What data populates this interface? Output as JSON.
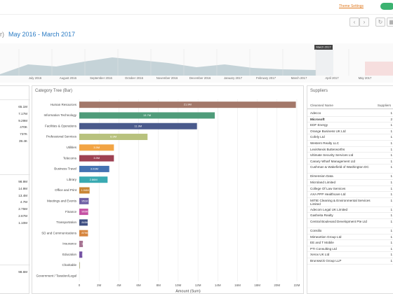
{
  "header": {
    "theme_settings": "Theme Settings"
  },
  "title": {
    "prefix": "r)",
    "range": "May 2016 - March 2017"
  },
  "timeline": {
    "months": [
      "July 2016",
      "August 2016",
      "September 2016",
      "October 2016",
      "November 2016",
      "December 2016",
      "January 2017",
      "February 2017",
      "March 2017",
      "April 2017",
      "May 2017"
    ],
    "selected": "March 2017"
  },
  "left_panel": {
    "groups": [
      [
        "65.1M",
        "7.17M",
        "9.29M",
        "470K",
        "737K",
        "39.4K"
      ],
      [
        "98.9M",
        "14.9M",
        "13.4M",
        "4.7M",
        "2.75M",
        "2.67M",
        "1.10M"
      ],
      [
        "98.6M"
      ]
    ]
  },
  "category_tree": {
    "type": "bar",
    "title": "Category Tree (Bar)",
    "categories": [
      "Human Resources",
      "Information Technology",
      "Facilities & Operations",
      "Professional Services",
      "Utilities",
      "Telecoms",
      "Business Travel",
      "Library",
      "Office and Print",
      "Meetings and Events",
      "Finance",
      "Transportation",
      "SD and Communications",
      "Insurance",
      "Education",
      "Charitable",
      "Government / Taxation/Legal"
    ],
    "values": [
      21900000,
      13700000,
      11900000,
      6900000,
      3500000,
      3500000,
      3030000,
      2860000,
      1040000,
      951000,
      900000,
      845000,
      879000,
      364000,
      304000,
      48300,
      1700
    ],
    "value_labels": [
      "21.9M",
      "13.7M",
      "11.9M",
      "6.9M",
      "3.5M",
      "3.5M",
      "3.03M",
      "2.86M",
      "1.04M",
      "951K",
      "900K",
      "845K",
      "879K",
      "364K",
      "304K",
      "48.3K",
      "1.70K"
    ],
    "colors": [
      "#a3786a",
      "#4f9c7a",
      "#4a5a8c",
      "#b8c27e",
      "#f2a444",
      "#9e4152",
      "#4472b2",
      "#3aaab2",
      "#c98534",
      "#6e5fa4",
      "#c552a4",
      "#3f4f82",
      "#d6853e",
      "#a67392",
      "#7553a4",
      "#9b9b63",
      "#93b372"
    ],
    "xlim": [
      0,
      22000000
    ],
    "xticks": [
      0,
      {
        "value": 2000000,
        "label": "2M"
      },
      {
        "value": 4000000,
        "label": "4M"
      },
      {
        "value": 6000000,
        "label": "6M"
      },
      {
        "value": 8000000,
        "label": "8M"
      },
      {
        "value": 10000000,
        "label": "10M"
      },
      {
        "value": 12000000,
        "label": "12M"
      },
      {
        "value": 14000000,
        "label": "14M"
      },
      {
        "value": 16000000,
        "label": "16M"
      },
      {
        "value": 18000000,
        "label": "18M"
      },
      {
        "value": 20000000,
        "label": "20M"
      },
      {
        "value": 22000000,
        "label": "22M"
      }
    ],
    "grid": true,
    "x_label": "Amount (Sum)"
  },
  "suppliers": {
    "title": "Suppliers",
    "columns": [
      "Cleansed Name",
      "Suppliers"
    ],
    "rows": [
      [
        "Adecco",
        1
      ],
      [
        "Microsoft",
        2
      ],
      [
        "EDF Energy",
        1
      ],
      [
        "Orange Business UK Ltd",
        1
      ],
      [
        "Cofely Ltd",
        1
      ],
      [
        "Western Realty LLC",
        1
      ],
      [
        "LexisNexis Butterworths",
        1
      ],
      [
        "Ultimate Security Services Ltd",
        1
      ],
      [
        "Canary Wharf Management Ltd",
        1
      ],
      [
        "Cushman & Wakefield of Washington DC",
        1
      ],
      [
        "Dimension Data",
        1
      ],
      [
        "Microland Limited",
        1
      ],
      [
        "College Of Law Services",
        1
      ],
      [
        "AXA PPP Healthcare Ltd",
        1
      ],
      [
        "MITIE Cleaning & Environmental Services Limited",
        1
      ],
      [
        "Adecom Legal UK Limited",
        1
      ],
      [
        "Gasheita Realty",
        1
      ],
      [
        "Central Boulevard Development Pte Ltd",
        1
      ],
      [
        "Consilio",
        1
      ],
      [
        "Mimeartion Group Ltd",
        1
      ],
      [
        "EE and T Mobile",
        1
      ],
      [
        "PTI Consulting Ltd",
        1
      ],
      [
        "Xerox UK Ltd",
        1
      ],
      [
        "Brunswick Group LLP",
        1
      ]
    ]
  }
}
